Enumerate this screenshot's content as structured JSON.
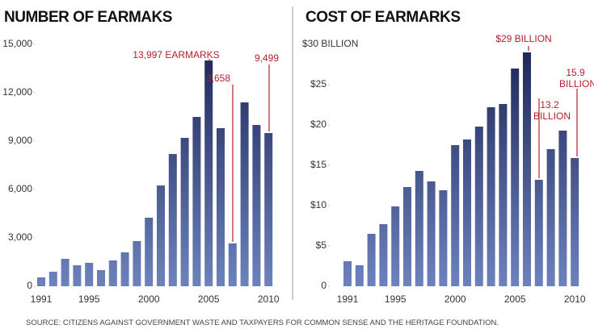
{
  "chart_data": [
    {
      "type": "bar",
      "title": "NUMBER OF EARMAKS",
      "categories": [
        "1991",
        null,
        null,
        null,
        "1995",
        null,
        null,
        null,
        null,
        "2000",
        null,
        null,
        null,
        null,
        "2005",
        null,
        null,
        null,
        null,
        "2010"
      ],
      "values": [
        550,
        900,
        1700,
        1300,
        1450,
        1000,
        1600,
        2100,
        2800,
        4250,
        6250,
        8200,
        9200,
        10500,
        13997,
        9800,
        2658,
        11400,
        10000,
        9499
      ],
      "value_labels": [
        null,
        null,
        null,
        null,
        null,
        null,
        null,
        null,
        null,
        null,
        null,
        null,
        null,
        null,
        "13,997 EARMARKS",
        null,
        "2,658",
        null,
        null,
        "9,499"
      ],
      "color": "#1c2656",
      "ylim": [
        0,
        15000
      ],
      "yticks": [
        0,
        {
          "value": 3000,
          "label": "3,000"
        },
        {
          "value": 6000,
          "label": "6,000"
        },
        {
          "value": 9000,
          "label": "9,000"
        },
        {
          "value": 12000,
          "label": "12,000"
        },
        {
          "value": 15000,
          "label": "15,000"
        }
      ],
      "grid": false
    },
    {
      "type": "bar",
      "title": "COST OF EARMARKS",
      "categories": [
        "1991",
        null,
        null,
        null,
        "1995",
        null,
        null,
        null,
        null,
        "2000",
        null,
        null,
        null,
        null,
        "2005",
        null,
        null,
        null,
        null,
        "2010"
      ],
      "values": [
        3.1,
        2.6,
        6.5,
        7.7,
        9.9,
        12.3,
        14.3,
        13.0,
        11.9,
        17.5,
        18.2,
        19.8,
        22.2,
        22.6,
        27.0,
        29,
        13.2,
        17.0,
        19.3,
        15.9
      ],
      "value_labels": [
        null,
        null,
        null,
        null,
        null,
        null,
        null,
        null,
        null,
        null,
        null,
        null,
        null,
        null,
        null,
        "$29 BILLION",
        "13.2 BILLION",
        null,
        null,
        "15.9 BILLION"
      ],
      "color": "#1c2656",
      "ylim": [
        0,
        30
      ],
      "yticks": [
        0,
        {
          "value": 5,
          "label": "$5"
        },
        {
          "value": 10,
          "label": "$10"
        },
        {
          "value": 15,
          "label": "$15"
        },
        {
          "value": 20,
          "label": "$20"
        },
        {
          "value": 25,
          "label": "$25"
        },
        {
          "value": 30,
          "label": "$30 BILLION"
        }
      ],
      "grid": false
    }
  ],
  "source": "SOURCE: CITIZENS AGAINST GOVERNMENT WASTE AND TAXPAYERS FOR COMMON SENSE AND THE HERITAGE FOUNDATION."
}
